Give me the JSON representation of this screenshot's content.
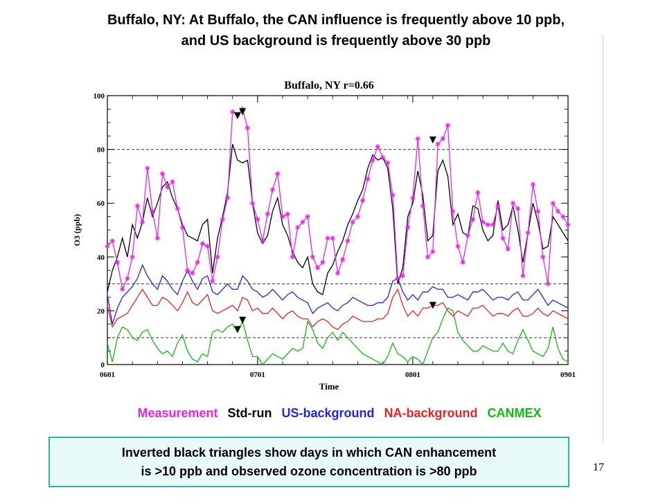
{
  "slide": {
    "title_line1": "Buffalo, NY: At Buffalo, the CAN influence is frequently above 10 ppb,",
    "title_line2": "and US background is frequently above 30 ppb",
    "note_line1": "Inverted black triangles show days in which CAN enhancement",
    "note_line2": "is >10 ppb and observed ozone concentration is >80 ppb",
    "page_number": "17"
  },
  "legend": [
    {
      "label": "Measurement",
      "color": "#ee22ee"
    },
    {
      "label": "Std-run",
      "color": "#000000"
    },
    {
      "label": "US-background",
      "color": "#2222ee"
    },
    {
      "label": "NA-background",
      "color": "#ee2222"
    },
    {
      "label": "CANMEX",
      "color": "#11bb11"
    }
  ],
  "chart_data": {
    "type": "line",
    "title": "Buffalo, NY   r=0.66",
    "xlabel": "Time",
    "ylabel": "O3 (ppb)",
    "xlim": [
      0,
      92
    ],
    "ylim": [
      0,
      100
    ],
    "x_ticks": [
      {
        "value": 0,
        "label": "0601"
      },
      {
        "value": 30,
        "label": "0701"
      },
      {
        "value": 61,
        "label": "0801"
      },
      {
        "value": 92,
        "label": "0901"
      }
    ],
    "y_ticks": [
      0,
      20,
      40,
      60,
      80,
      100
    ],
    "reference_lines": [
      10,
      30,
      80
    ],
    "series": [
      {
        "name": "Measurement",
        "color": "#ee22ee",
        "marker": "asterisk",
        "values": [
          44,
          46,
          38,
          28,
          32,
          40,
          59,
          53,
          73,
          57,
          47,
          71,
          66,
          68,
          58,
          51,
          35,
          34,
          38,
          45,
          44,
          31,
          40,
          54,
          62,
          94,
          93,
          95,
          88,
          60,
          54,
          46,
          56,
          65,
          71,
          55,
          56,
          40,
          51,
          53,
          55,
          40,
          36,
          38,
          47,
          47,
          34,
          39,
          46,
          53,
          55,
          61,
          69,
          76,
          81,
          77,
          75,
          63,
          32,
          33,
          51,
          62,
          84,
          59,
          40,
          42,
          82,
          84,
          89,
          57,
          44,
          38,
          48,
          54,
          64,
          53,
          52,
          52,
          59,
          47,
          43,
          60,
          58,
          33,
          49,
          67,
          57,
          40,
          30,
          60,
          57,
          55,
          52
        ]
      },
      {
        "name": "Std-run",
        "color": "#000000",
        "marker": "none",
        "values": [
          27,
          35,
          40,
          47,
          40,
          52,
          47,
          53,
          62,
          55,
          60,
          66,
          68,
          62,
          58,
          52,
          48,
          47,
          46,
          52,
          54,
          34,
          47,
          55,
          64,
          82,
          76,
          75,
          76,
          60,
          49,
          45,
          48,
          57,
          62,
          52,
          48,
          42,
          38,
          36,
          40,
          30,
          27,
          26,
          34,
          37,
          42,
          46,
          52,
          56,
          61,
          65,
          73,
          78,
          76,
          77,
          73,
          58,
          30,
          36,
          55,
          60,
          72,
          63,
          46,
          48,
          72,
          76,
          70,
          52,
          56,
          49,
          48,
          59,
          58,
          50,
          46,
          48,
          61,
          50,
          52,
          59,
          50,
          38,
          49,
          60,
          53,
          43,
          44,
          55,
          52,
          49,
          46
        ]
      },
      {
        "name": "US-background",
        "color": "#2222ee",
        "marker": "none",
        "values": [
          26,
          15,
          21,
          25,
          27,
          29,
          32,
          37,
          33,
          30,
          28,
          33,
          31,
          28,
          26,
          31,
          35,
          31,
          28,
          32,
          33,
          27,
          26,
          28,
          30,
          28,
          28,
          33,
          31,
          28,
          27,
          25,
          26,
          28,
          26,
          24,
          26,
          27,
          25,
          24,
          23,
          19,
          21,
          22,
          23,
          21,
          20,
          22,
          23,
          25,
          24,
          23,
          22,
          22,
          23,
          23,
          25,
          31,
          32,
          27,
          24,
          26,
          24,
          27,
          27,
          29,
          28,
          28,
          25,
          25,
          26,
          25,
          24,
          27,
          27,
          28,
          26,
          24,
          25,
          25,
          24,
          26,
          27,
          24,
          24,
          26,
          28,
          25,
          22,
          24,
          23,
          22,
          21
        ]
      },
      {
        "name": "NA-background",
        "color": "#ee2222",
        "marker": "none",
        "values": [
          22,
          14,
          17,
          18,
          19,
          22,
          25,
          28,
          25,
          22,
          22,
          25,
          24,
          22,
          20,
          23,
          27,
          23,
          22,
          24,
          26,
          20,
          19,
          20,
          21,
          22,
          20,
          25,
          24,
          20,
          21,
          19,
          19,
          21,
          19,
          17,
          19,
          20,
          18,
          17,
          17,
          14,
          16,
          17,
          16,
          14,
          13,
          15,
          16,
          18,
          17,
          16,
          16,
          16,
          17,
          17,
          19,
          25,
          28,
          22,
          18,
          20,
          18,
          21,
          21,
          22,
          22,
          23,
          20,
          18,
          20,
          19,
          18,
          21,
          21,
          22,
          20,
          18,
          19,
          19,
          18,
          20,
          21,
          18,
          18,
          19,
          21,
          19,
          18,
          20,
          19,
          18,
          17
        ]
      },
      {
        "name": "CANMEX",
        "color": "#11bb11",
        "marker": "none",
        "values": [
          8,
          1,
          10,
          14,
          13,
          10,
          9,
          12,
          13,
          9,
          6,
          4,
          5,
          3,
          8,
          11,
          5,
          2,
          1,
          4,
          3,
          12,
          13,
          12,
          14,
          15,
          12,
          16,
          9,
          3,
          3,
          0,
          2,
          4,
          3,
          2,
          4,
          6,
          5,
          6,
          16,
          13,
          8,
          6,
          10,
          12,
          9,
          12,
          10,
          8,
          6,
          4,
          3,
          2,
          1,
          0,
          3,
          8,
          4,
          3,
          1,
          3,
          2,
          0,
          5,
          10,
          12,
          17,
          21,
          20,
          12,
          9,
          7,
          5,
          5,
          7,
          6,
          5,
          5,
          8,
          5,
          4,
          9,
          13,
          9,
          5,
          4,
          3,
          6,
          14,
          6,
          2,
          1
        ]
      }
    ],
    "triangle_markers": [
      {
        "x": 26,
        "y": 92.5
      },
      {
        "x": 26,
        "y": 13
      },
      {
        "x": 27,
        "y": 94
      },
      {
        "x": 27,
        "y": 16.5
      },
      {
        "x": 65,
        "y": 83.5
      },
      {
        "x": 65,
        "y": 22
      }
    ]
  }
}
